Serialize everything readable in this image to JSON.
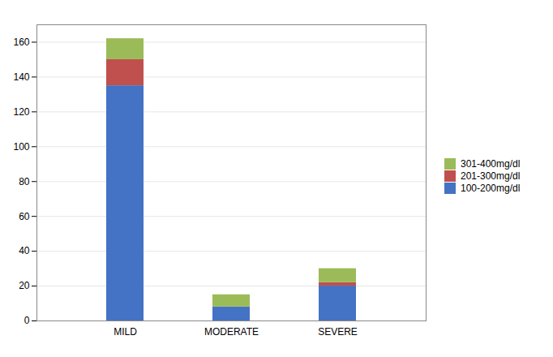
{
  "chart_data": {
    "type": "bar",
    "stacked": true,
    "categories": [
      "MILD",
      "MODERATE",
      "SEVERE"
    ],
    "series": [
      {
        "name": "100-200mg/dl",
        "color": "#4472C4",
        "values": [
          135,
          8,
          20
        ]
      },
      {
        "name": "201-300mg/dl",
        "color": "#C0504D",
        "values": [
          15,
          0,
          2
        ]
      },
      {
        "name": "301-400mg/dl",
        "color": "#9BBB59",
        "values": [
          12,
          7,
          8
        ]
      }
    ],
    "ylim": [
      0,
      170
    ],
    "yticks": [
      0,
      20,
      40,
      60,
      80,
      100,
      120,
      140,
      160
    ],
    "grid": true,
    "legend": "right"
  }
}
